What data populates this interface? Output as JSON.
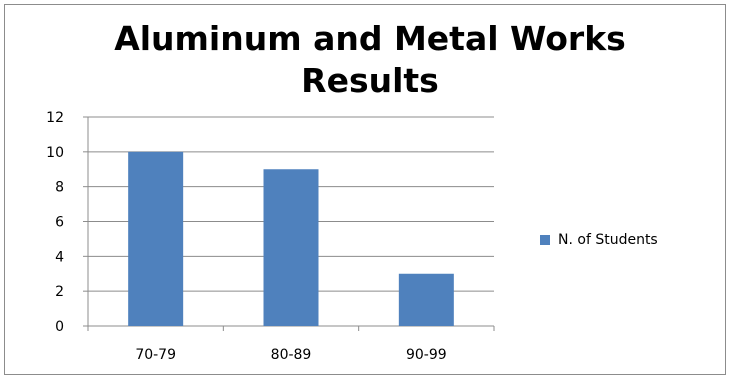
{
  "chart_data": {
    "type": "bar",
    "title": "Aluminum and Metal Works Results",
    "title_lines": [
      "Aluminum and Metal Works",
      "Results"
    ],
    "categories": [
      "70-79",
      "80-89",
      "90-99"
    ],
    "series": [
      {
        "name": "N. of Students",
        "values": [
          10,
          9,
          3
        ],
        "color": "#4f81bd"
      }
    ],
    "xlabel": "",
    "ylabel": "",
    "ylim": [
      0,
      12
    ],
    "yticks": [
      0,
      2,
      4,
      6,
      8,
      10,
      12
    ],
    "grid": true,
    "legend": "right"
  },
  "colors": {
    "grid": "#8c8c8c",
    "axis": "#8c8c8c",
    "frame": "#8c8c8c"
  }
}
